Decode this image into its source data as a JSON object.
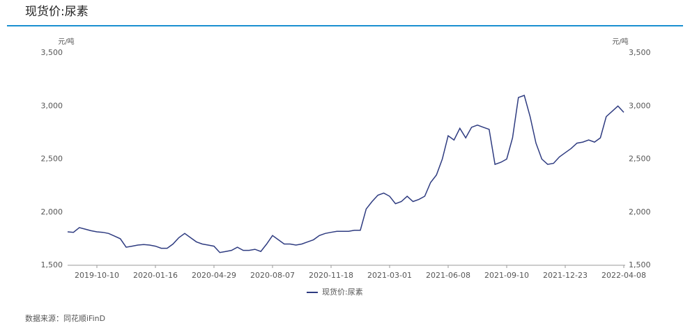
{
  "chart_data": {
    "type": "line",
    "title": "现货价:尿素",
    "y_label": "元/吨",
    "y2_label": "元/吨",
    "categories": [
      null,
      null,
      null,
      null,
      null,
      "2019-10-10",
      null,
      null,
      null,
      null,
      null,
      null,
      null,
      null,
      null,
      "2020-01-16",
      null,
      null,
      null,
      null,
      null,
      null,
      null,
      null,
      null,
      "2020-04-29",
      null,
      null,
      null,
      null,
      null,
      null,
      null,
      null,
      null,
      "2020-08-07",
      null,
      null,
      null,
      null,
      null,
      null,
      null,
      null,
      null,
      "2020-11-18",
      null,
      null,
      null,
      null,
      null,
      null,
      null,
      null,
      null,
      "2021-03-01",
      null,
      null,
      null,
      null,
      null,
      null,
      null,
      null,
      null,
      "2021-06-08",
      null,
      null,
      null,
      null,
      null,
      null,
      null,
      null,
      null,
      "2021-09-10",
      null,
      null,
      null,
      null,
      null,
      null,
      null,
      null,
      null,
      "2021-12-23",
      null,
      null,
      null,
      null,
      null,
      null,
      null,
      null,
      null,
      "2022-04-08"
    ],
    "series": [
      {
        "name": "现货价:尿素",
        "color": "#2e3b80",
        "values": [
          1815,
          1810,
          1855,
          1840,
          1825,
          1815,
          1810,
          1800,
          1775,
          1750,
          1670,
          1680,
          1690,
          1695,
          1690,
          1680,
          1660,
          1660,
          1700,
          1760,
          1800,
          1760,
          1720,
          1700,
          1690,
          1680,
          1620,
          1630,
          1640,
          1670,
          1640,
          1640,
          1650,
          1630,
          1700,
          1780,
          1740,
          1700,
          1700,
          1690,
          1700,
          1720,
          1740,
          1780,
          1800,
          1810,
          1820,
          1820,
          1820,
          1830,
          1830,
          2030,
          2100,
          2160,
          2180,
          2150,
          2080,
          2100,
          2150,
          2100,
          2120,
          2150,
          2280,
          2350,
          2500,
          2720,
          2680,
          2790,
          2700,
          2800,
          2820,
          2800,
          2780,
          2450,
          2470,
          2500,
          2700,
          3080,
          3100,
          2900,
          2650,
          2500,
          2450,
          2460,
          2520,
          2560,
          2600,
          2650,
          2660,
          2680,
          2660,
          2700,
          2900,
          2950,
          3000,
          2940
        ]
      }
    ],
    "ylim": [
      1500,
      3500
    ],
    "yticks": [
      {
        "value": 1500,
        "label": "1,500"
      },
      {
        "value": 2000,
        "label": "2,000"
      },
      {
        "value": 2500,
        "label": "2,500"
      },
      {
        "value": 3000,
        "label": "3,000"
      },
      {
        "value": 3500,
        "label": "3,500"
      }
    ],
    "y2lim": [
      1500,
      3500
    ],
    "y2ticks": [
      {
        "value": 1500,
        "label": "1,500"
      },
      {
        "value": 2000,
        "label": "2,000"
      },
      {
        "value": 2500,
        "label": "2,500"
      },
      {
        "value": 3000,
        "label": "3,000"
      },
      {
        "value": 3500,
        "label": "3,500"
      }
    ],
    "grid": false,
    "source": "数据来源：同花顺iFinD"
  }
}
